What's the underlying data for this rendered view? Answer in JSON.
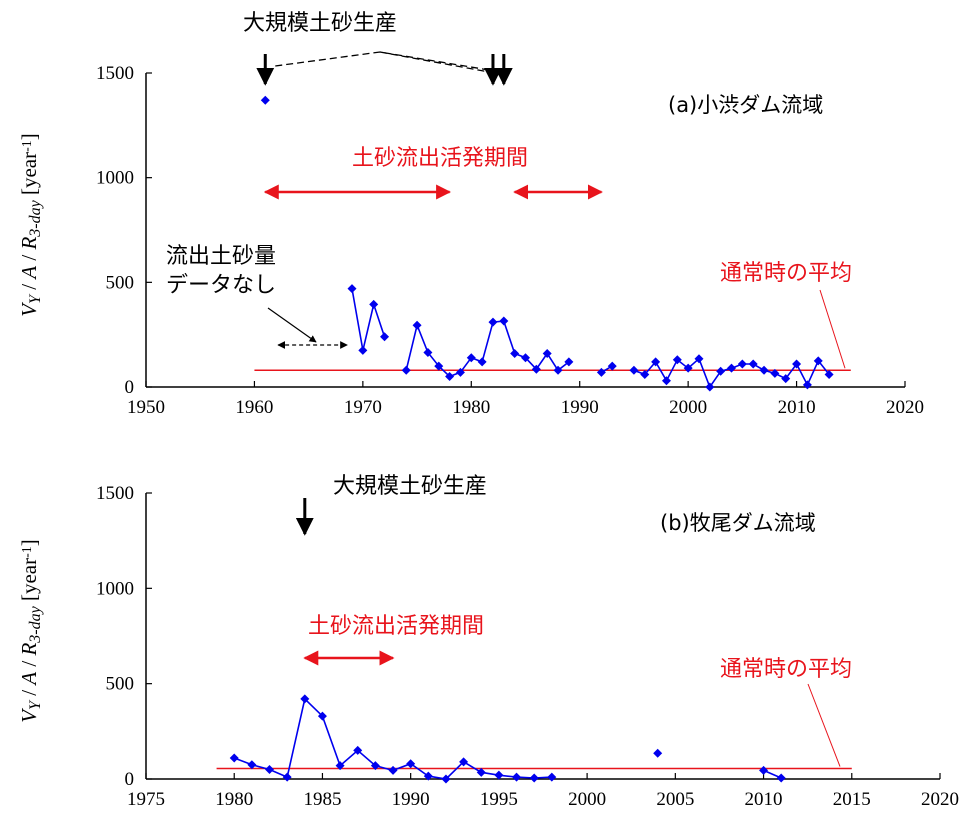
{
  "colors": {
    "series": "#0000ee",
    "average": "#e8141c",
    "annotation_red": "#e8141c",
    "axis": "#000000"
  },
  "chart_data": [
    {
      "type": "line",
      "panel_label": "(a)小渋ダム流域",
      "ylabel_parts": [
        "V",
        "Y",
        " / ",
        "A",
        " / ",
        "R",
        "3-day",
        " [year",
        "-1",
        "]"
      ],
      "xlim": [
        1950,
        2020
      ],
      "ylim": [
        0,
        1500
      ],
      "xticks": [
        "1950",
        "1960",
        "1970",
        "1980",
        "1990",
        "2000",
        "2010",
        "2020"
      ],
      "yticks": [
        "0",
        "500",
        "1000",
        "1500"
      ],
      "grid": false,
      "series": [
        {
          "segments": [
            [
              [
                1961,
                1370
              ]
            ],
            [
              [
                1969,
                470
              ],
              [
                1970,
                175
              ],
              [
                1971,
                395
              ],
              [
                1972,
                240
              ]
            ],
            [
              [
                1974,
                80
              ],
              [
                1975,
                295
              ],
              [
                1976,
                165
              ],
              [
                1977,
                100
              ],
              [
                1978,
                50
              ],
              [
                1979,
                70
              ],
              [
                1980,
                140
              ],
              [
                1981,
                120
              ],
              [
                1982,
                310
              ],
              [
                1983,
                315
              ],
              [
                1984,
                160
              ],
              [
                1985,
                140
              ],
              [
                1986,
                85
              ],
              [
                1987,
                160
              ],
              [
                1988,
                80
              ],
              [
                1989,
                120
              ]
            ],
            [
              [
                1992,
                70
              ],
              [
                1993,
                100
              ]
            ],
            [
              [
                1995,
                80
              ],
              [
                1996,
                60
              ],
              [
                1997,
                120
              ],
              [
                1998,
                30
              ],
              [
                1999,
                130
              ],
              [
                2000,
                90
              ],
              [
                2001,
                135
              ],
              [
                2002,
                0
              ],
              [
                2003,
                75
              ],
              [
                2004,
                90
              ],
              [
                2005,
                110
              ],
              [
                2006,
                110
              ],
              [
                2007,
                80
              ],
              [
                2008,
                65
              ],
              [
                2009,
                40
              ],
              [
                2010,
                110
              ],
              [
                2011,
                10
              ],
              [
                2012,
                125
              ],
              [
                2013,
                60
              ]
            ]
          ]
        }
      ],
      "average": {
        "value": 80,
        "x_range": [
          1960,
          2015
        ],
        "label": "通常時の平均"
      },
      "active_periods": {
        "label": "土砂流出活発期間",
        "ranges": [
          [
            1961,
            1978
          ],
          [
            1984,
            1992
          ]
        ]
      },
      "large_production": {
        "label": "大規模土砂生産",
        "years": [
          1961,
          1982,
          1983
        ]
      },
      "no_data": {
        "label_lines": [
          "流出土砂量",
          "データなし"
        ],
        "range": [
          1962,
          1968
        ]
      }
    },
    {
      "type": "line",
      "panel_label": "(b)牧尾ダム流域",
      "ylabel_parts": [
        "V",
        "Y",
        " / ",
        "A",
        " / ",
        "R",
        "3-day",
        " [year",
        "-1",
        "]"
      ],
      "xlim": [
        1975,
        2020
      ],
      "ylim": [
        0,
        1500
      ],
      "xticks": [
        "1975",
        "1980",
        "1985",
        "1990",
        "1995",
        "2000",
        "2005",
        "2010",
        "2015",
        "2020"
      ],
      "yticks": [
        "0",
        "500",
        "1000",
        "1500"
      ],
      "grid": false,
      "series": [
        {
          "segments": [
            [
              [
                1980,
                110
              ],
              [
                1981,
                75
              ],
              [
                1982,
                50
              ],
              [
                1983,
                10
              ],
              [
                1984,
                420
              ],
              [
                1985,
                330
              ],
              [
                1986,
                70
              ],
              [
                1987,
                150
              ],
              [
                1988,
                70
              ],
              [
                1989,
                45
              ],
              [
                1990,
                80
              ],
              [
                1991,
                15
              ],
              [
                1992,
                0
              ],
              [
                1993,
                90
              ],
              [
                1994,
                35
              ],
              [
                1995,
                20
              ],
              [
                1996,
                10
              ],
              [
                1997,
                5
              ],
              [
                1998,
                10
              ]
            ],
            [
              [
                2004,
                135
              ]
            ],
            [
              [
                2010,
                45
              ],
              [
                2011,
                5
              ]
            ]
          ]
        }
      ],
      "average": {
        "value": 55,
        "x_range": [
          1979,
          2015
        ],
        "label": "通常時の平均"
      },
      "active_periods": {
        "label": "土砂流出活発期間",
        "ranges": [
          [
            1984,
            1989
          ]
        ]
      },
      "large_production": {
        "label": "大規模土砂生産",
        "years": [
          1984
        ]
      }
    }
  ]
}
